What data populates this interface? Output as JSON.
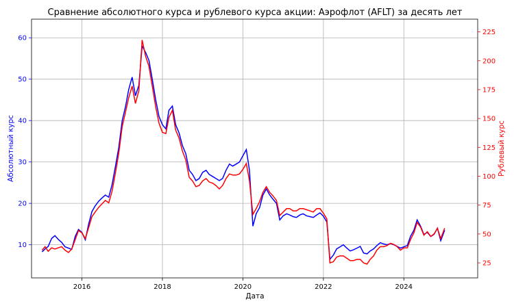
{
  "chart_data": {
    "type": "line",
    "title": "Сравнение абсолютного курса и рублевого курса акции: Аэрофлот (AFLT) за десять лет",
    "xlabel": "Дата",
    "ylabel_left": "Абсолютный курс",
    "ylabel_right": "Рублевый курс",
    "grid": true,
    "xlim": [
      "2014-10-01",
      "2025-11-01"
    ],
    "ylim_left": [
      2,
      64.5
    ],
    "ylim_right": [
      12,
      236
    ],
    "x_ticks": [
      "2016",
      "2018",
      "2020",
      "2022",
      "2024"
    ],
    "y_ticks_left": [
      10,
      20,
      30,
      40,
      50,
      60
    ],
    "y_ticks_right": [
      25,
      50,
      75,
      100,
      125,
      150,
      175,
      200,
      225
    ],
    "colors": {
      "absolute": "#0000ff",
      "ruble": "#ff0000"
    },
    "series": [
      {
        "axis": "left",
        "color": "#0000ff",
        "x": [
          "2015-01-05",
          "2015-02-01",
          "2015-03-01",
          "2015-04-01",
          "2015-05-01",
          "2015-06-01",
          "2015-07-01",
          "2015-08-01",
          "2015-09-01",
          "2015-10-01",
          "2015-11-01",
          "2015-12-01",
          "2016-01-01",
          "2016-02-01",
          "2016-03-01",
          "2016-04-01",
          "2016-05-01",
          "2016-06-01",
          "2016-07-01",
          "2016-08-01",
          "2016-09-01",
          "2016-10-01",
          "2016-11-01",
          "2016-12-01",
          "2017-01-01",
          "2017-02-01",
          "2017-03-01",
          "2017-04-01",
          "2017-05-01",
          "2017-06-01",
          "2017-07-01",
          "2017-08-01",
          "2017-09-01",
          "2017-10-01",
          "2017-11-01",
          "2017-12-01",
          "2018-01-01",
          "2018-02-01",
          "2018-03-01",
          "2018-04-01",
          "2018-05-01",
          "2018-06-01",
          "2018-07-01",
          "2018-08-01",
          "2018-09-01",
          "2018-10-01",
          "2018-11-01",
          "2018-12-01",
          "2019-01-01",
          "2019-02-01",
          "2019-03-01",
          "2019-04-01",
          "2019-05-01",
          "2019-06-01",
          "2019-07-01",
          "2019-08-01",
          "2019-09-01",
          "2019-10-01",
          "2019-11-01",
          "2019-12-01",
          "2020-01-01",
          "2020-02-01",
          "2020-03-01",
          "2020-04-01",
          "2020-05-01",
          "2020-06-01",
          "2020-07-01",
          "2020-08-01",
          "2020-09-01",
          "2020-10-01",
          "2020-11-01",
          "2020-12-01",
          "2021-01-01",
          "2021-02-01",
          "2021-03-01",
          "2021-04-01",
          "2021-05-01",
          "2021-06-01",
          "2021-07-01",
          "2021-08-01",
          "2021-09-01",
          "2021-10-01",
          "2021-11-01",
          "2021-12-01",
          "2022-01-01",
          "2022-02-01",
          "2022-03-01",
          "2022-04-01",
          "2022-05-01",
          "2022-06-01",
          "2022-07-01",
          "2022-08-01",
          "2022-09-01",
          "2022-10-01",
          "2022-11-01",
          "2022-12-01",
          "2023-01-01",
          "2023-02-01",
          "2023-03-01",
          "2023-04-01",
          "2023-05-01",
          "2023-06-01",
          "2023-07-01",
          "2023-08-01",
          "2023-09-01",
          "2023-10-01",
          "2023-11-01",
          "2023-12-01",
          "2024-01-01",
          "2024-02-01",
          "2024-03-01",
          "2024-04-01",
          "2024-05-01",
          "2024-06-01",
          "2024-07-01",
          "2024-08-01",
          "2024-09-01",
          "2024-10-01",
          "2024-11-01",
          "2024-12-01",
          "2025-01-05"
        ],
        "y": [
          8.3,
          9.0,
          9.6,
          11.5,
          12.2,
          11.3,
          10.6,
          9.5,
          9.2,
          8.9,
          12.0,
          13.7,
          13.0,
          11.2,
          14.8,
          18.0,
          19.4,
          20.5,
          21.3,
          22.0,
          21.5,
          24.5,
          29.0,
          33.5,
          40.0,
          43.5,
          47.5,
          50.5,
          46.0,
          48.5,
          58.0,
          56.5,
          54.5,
          50.0,
          45.0,
          41.0,
          39.0,
          38.0,
          42.5,
          43.5,
          39.0,
          37.0,
          34.0,
          32.0,
          28.0,
          27.0,
          25.5,
          26.0,
          27.5,
          28.0,
          27.0,
          26.5,
          26.0,
          25.5,
          26.0,
          28.0,
          29.5,
          29.0,
          29.5,
          30.0,
          31.5,
          33.0,
          28.0,
          14.5,
          17.5,
          19.0,
          22.0,
          23.5,
          22.0,
          21.0,
          20.0,
          16.0,
          17.0,
          17.5,
          17.2,
          16.8,
          16.6,
          17.2,
          17.5,
          17.0,
          16.8,
          16.6,
          17.2,
          17.7,
          16.9,
          15.5,
          6.5,
          7.5,
          9.0,
          9.5,
          10.0,
          9.2,
          8.5,
          8.8,
          9.2,
          9.6,
          8.0,
          7.8,
          8.5,
          9.0,
          9.8,
          10.5,
          10.2,
          10.0,
          10.3,
          10.0,
          9.6,
          9.2,
          9.5,
          9.8,
          12.0,
          13.5,
          16.0,
          14.5,
          12.5,
          13.0,
          12.0,
          12.5,
          14.0,
          11.0,
          13.5
        ]
      },
      {
        "axis": "right",
        "color": "#ff0000",
        "x": [
          "2015-01-05",
          "2015-02-01",
          "2015-03-01",
          "2015-04-01",
          "2015-05-01",
          "2015-06-01",
          "2015-07-01",
          "2015-08-01",
          "2015-09-01",
          "2015-10-01",
          "2015-11-01",
          "2015-12-01",
          "2016-01-01",
          "2016-02-01",
          "2016-03-01",
          "2016-04-01",
          "2016-05-01",
          "2016-06-01",
          "2016-07-01",
          "2016-08-01",
          "2016-09-01",
          "2016-10-01",
          "2016-11-01",
          "2016-12-01",
          "2017-01-01",
          "2017-02-01",
          "2017-03-01",
          "2017-04-01",
          "2017-05-01",
          "2017-06-01",
          "2017-07-01",
          "2017-08-01",
          "2017-09-01",
          "2017-10-01",
          "2017-11-01",
          "2017-12-01",
          "2018-01-01",
          "2018-02-01",
          "2018-03-01",
          "2018-04-01",
          "2018-05-01",
          "2018-06-01",
          "2018-07-01",
          "2018-08-01",
          "2018-09-01",
          "2018-10-01",
          "2018-11-01",
          "2018-12-01",
          "2019-01-01",
          "2019-02-01",
          "2019-03-01",
          "2019-04-01",
          "2019-05-01",
          "2019-06-01",
          "2019-07-01",
          "2019-08-01",
          "2019-09-01",
          "2019-10-01",
          "2019-11-01",
          "2019-12-01",
          "2020-01-01",
          "2020-02-01",
          "2020-03-01",
          "2020-04-01",
          "2020-05-01",
          "2020-06-01",
          "2020-07-01",
          "2020-08-01",
          "2020-09-01",
          "2020-10-01",
          "2020-11-01",
          "2020-12-01",
          "2021-01-01",
          "2021-02-01",
          "2021-03-01",
          "2021-04-01",
          "2021-05-01",
          "2021-06-01",
          "2021-07-01",
          "2021-08-01",
          "2021-09-01",
          "2021-10-01",
          "2021-11-01",
          "2021-12-01",
          "2022-01-01",
          "2022-02-01",
          "2022-03-01",
          "2022-04-01",
          "2022-05-01",
          "2022-06-01",
          "2022-07-01",
          "2022-08-01",
          "2022-09-01",
          "2022-10-01",
          "2022-11-01",
          "2022-12-01",
          "2023-01-01",
          "2023-02-01",
          "2023-03-01",
          "2023-04-01",
          "2023-05-01",
          "2023-06-01",
          "2023-07-01",
          "2023-08-01",
          "2023-09-01",
          "2023-10-01",
          "2023-11-01",
          "2023-12-01",
          "2024-01-01",
          "2024-02-01",
          "2024-03-01",
          "2024-04-01",
          "2024-05-01",
          "2024-06-01",
          "2024-07-01",
          "2024-08-01",
          "2024-09-01",
          "2024-10-01",
          "2024-11-01",
          "2024-12-01",
          "2025-01-05"
        ],
        "y": [
          36,
          39,
          35,
          38,
          37,
          38,
          39,
          36,
          34,
          37,
          45,
          53,
          51,
          46,
          55,
          65,
          69,
          73,
          76,
          79,
          77,
          87,
          103,
          120,
          143,
          156,
          168,
          178,
          163,
          174,
          218,
          204,
          195,
          178,
          160,
          146,
          138,
          137,
          151,
          157,
          140,
          133,
          122,
          114,
          99,
          96,
          91,
          92,
          96,
          98,
          95,
          94,
          92,
          89,
          92,
          98,
          102,
          101,
          101,
          102,
          106,
          111,
          96,
          67,
          72,
          78,
          86,
          91,
          86,
          83,
          79,
          66,
          69,
          72,
          72,
          70,
          70,
          72,
          72,
          71,
          70,
          69,
          72,
          72,
          68,
          63,
          25,
          26,
          30,
          31,
          31,
          29,
          27,
          27,
          28,
          28,
          25,
          24,
          28,
          31,
          36,
          39,
          39,
          40,
          42,
          41,
          39,
          36,
          38,
          38,
          45,
          51,
          60,
          56,
          49,
          52,
          48,
          50,
          55,
          46,
          55
        ]
      }
    ]
  }
}
